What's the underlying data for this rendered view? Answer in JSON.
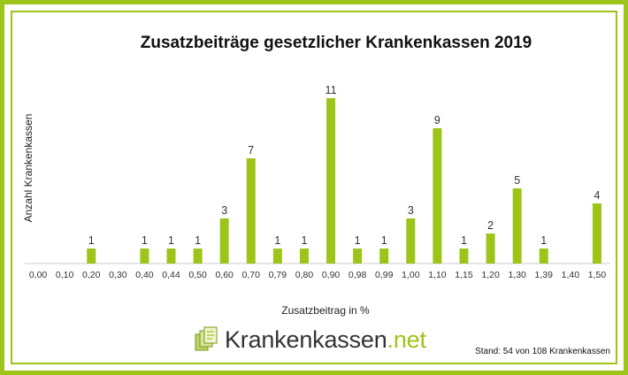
{
  "chart_data": {
    "type": "bar",
    "title": "Zusatzbeiträge gesetzlicher Krankenkassen 2019",
    "xlabel": "Zusatzbeitrag in %",
    "ylabel": "Anzahl Krankenkassen",
    "categories": [
      "0,00",
      "0,10",
      "0,20",
      "0,30",
      "0,40",
      "0,44",
      "0,50",
      "0,60",
      "0,70",
      "0,79",
      "0,80",
      "0,90",
      "0,98",
      "0,99",
      "1,00",
      "1,10",
      "1,15",
      "1,20",
      "1,30",
      "1,39",
      "1,40",
      "1,50"
    ],
    "values": [
      0,
      0,
      1,
      0,
      1,
      1,
      1,
      3,
      7,
      1,
      1,
      11,
      1,
      1,
      3,
      9,
      1,
      2,
      5,
      1,
      0,
      4
    ],
    "value_labels": [
      "",
      "",
      "1",
      "",
      "1",
      "1",
      "1",
      "3",
      "7",
      "1",
      "1",
      "11",
      "1",
      "1",
      "3",
      "9",
      "1",
      "2",
      "5",
      "1",
      "",
      "4"
    ],
    "ylim": [
      0,
      12
    ],
    "grid": false,
    "legend": "none",
    "bar_color": "#9dc419"
  },
  "branding": {
    "logo_name": "Krankenkassen",
    "logo_tld": ".net",
    "footnote": "Stand: 54 von 108 Krankenkassen"
  },
  "colors": {
    "frame": "#9dc419",
    "accent": "#9dc419"
  }
}
